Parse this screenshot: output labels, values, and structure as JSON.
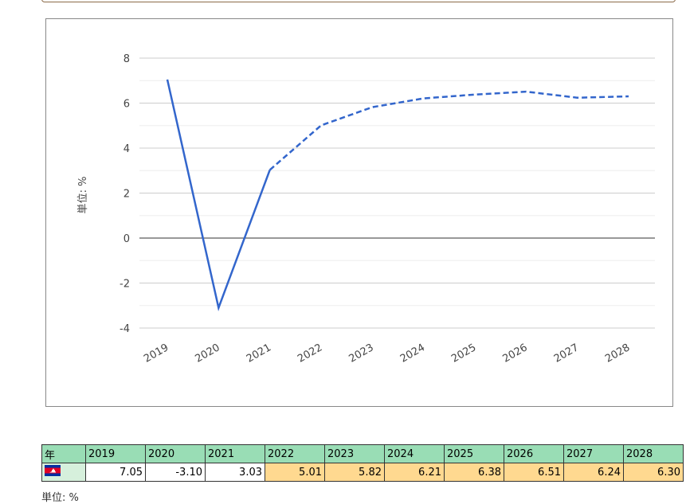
{
  "chart_data": {
    "type": "line",
    "y_label": "単位: %",
    "categories": [
      "2019",
      "2020",
      "2021",
      "2022",
      "2023",
      "2024",
      "2025",
      "2026",
      "2027",
      "2028"
    ],
    "series": [
      {
        "color": "#3366cc",
        "dashed": false,
        "values": [
          7.05,
          -3.1,
          3.03,
          null,
          null,
          null,
          null,
          null,
          null,
          null
        ]
      },
      {
        "color": "#3366cc",
        "dashed": true,
        "values": [
          null,
          null,
          3.03,
          5.01,
          5.82,
          6.21,
          6.38,
          6.51,
          6.24,
          6.3
        ]
      }
    ],
    "ylim": [
      -4,
      8
    ],
    "yticks": [
      -4,
      -2,
      0,
      2,
      4,
      6,
      8
    ],
    "grid": true
  },
  "table": {
    "header": [
      "年",
      "2019",
      "2020",
      "2021",
      "2022",
      "2023",
      "2024",
      "2025",
      "2026",
      "2027",
      "2028"
    ],
    "row": [
      "7.05",
      "-3.10",
      "3.03",
      "5.01",
      "5.82",
      "6.21",
      "6.38",
      "6.51",
      "6.24",
      "6.30"
    ],
    "cell_colors": [
      "#ffffff",
      "#ffffff",
      "#ffffff",
      "#ffd990",
      "#ffd990",
      "#ffd990",
      "#ffd990",
      "#ffd990",
      "#ffd990",
      "#ffd990"
    ],
    "unit": "単位: %"
  }
}
